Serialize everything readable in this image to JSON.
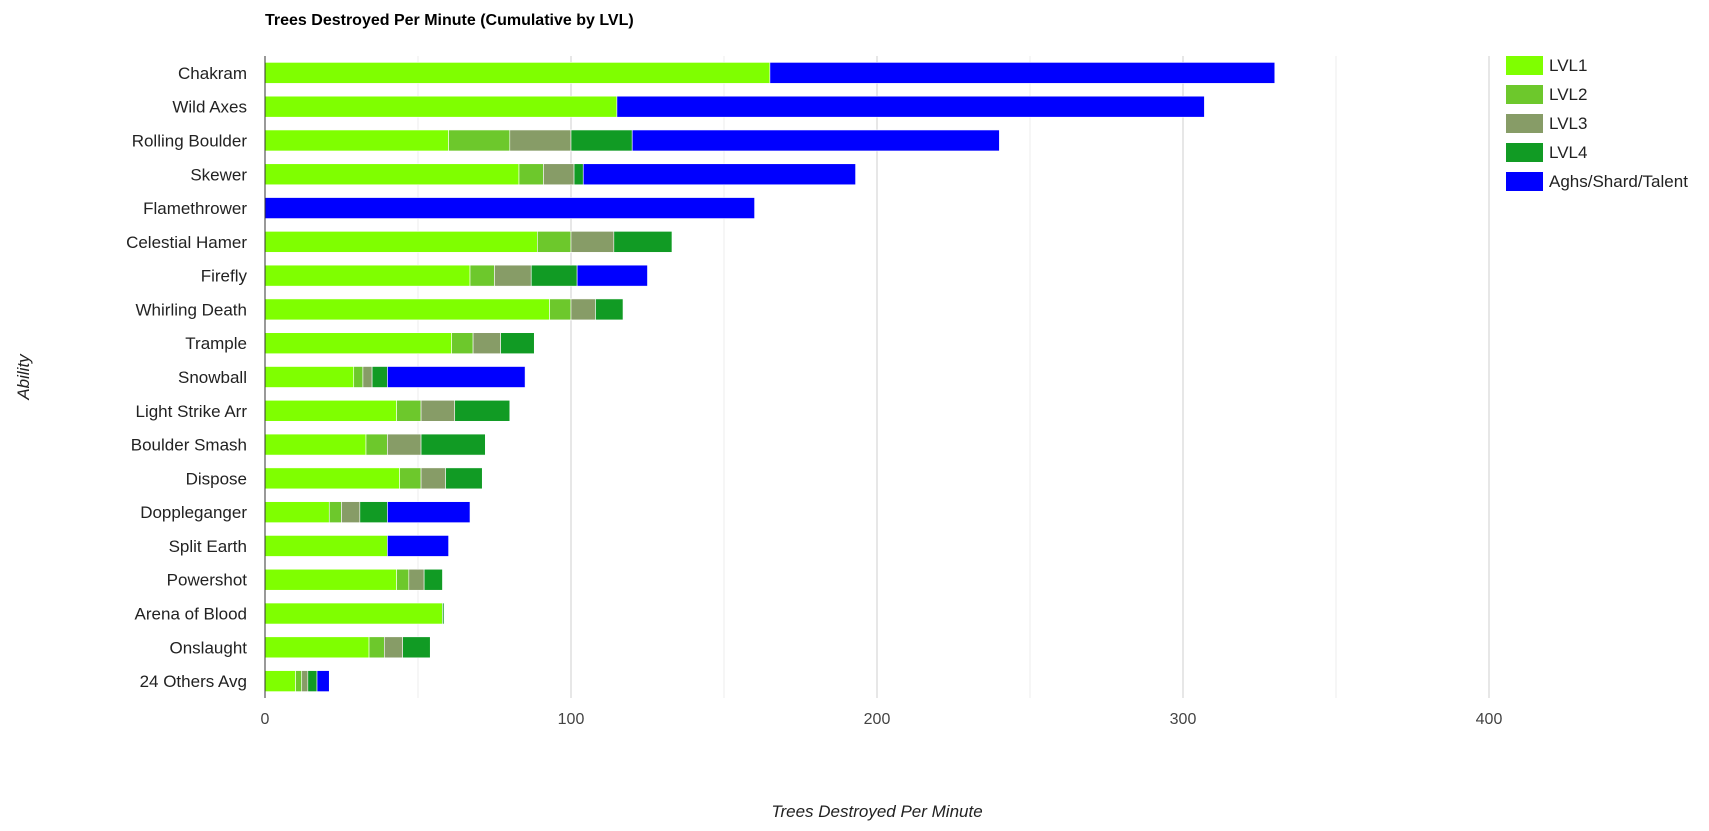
{
  "chart_data": {
    "type": "bar",
    "orientation": "horizontal",
    "stacked": true,
    "title": "Trees Destroyed Per Minute (Cumulative by LVL)",
    "xlabel": "Trees Destroyed Per Minute",
    "ylabel": "Ability",
    "xlim": [
      0,
      400
    ],
    "x_ticks": [
      0,
      100,
      200,
      300,
      400
    ],
    "grid": true,
    "legend_position": "top-right",
    "categories": [
      "Chakram",
      "Wild Axes",
      "Rolling Boulder",
      "Skewer",
      "Flamethrower",
      "Celestial Hamer",
      "Firefly",
      "Whirling Death",
      "Trample",
      "Snowball",
      "Light Strike Arr",
      "Boulder Smash",
      "Dispose",
      "Doppleganger",
      "Split Earth",
      "Powershot",
      "Arena of Blood",
      "Onslaught",
      "24 Others Avg"
    ],
    "series": [
      {
        "name": "LVL1",
        "color": "#7fff00",
        "values": [
          165,
          115,
          60,
          83,
          0,
          89,
          67,
          93,
          61,
          29,
          43,
          33,
          44,
          21,
          40,
          43,
          58,
          34,
          10
        ]
      },
      {
        "name": "LVL2",
        "color": "#6dc82c",
        "values": [
          0,
          0,
          20,
          8,
          0,
          11,
          8,
          7,
          7,
          3,
          8,
          7,
          7,
          4,
          0,
          4,
          0,
          5,
          2
        ]
      },
      {
        "name": "LVL3",
        "color": "#879c67",
        "values": [
          0,
          0,
          20,
          10,
          0,
          14,
          12,
          8,
          9,
          3,
          11,
          11,
          8,
          6,
          0,
          5,
          0,
          6,
          2
        ]
      },
      {
        "name": "LVL4",
        "color": "#119b24",
        "values": [
          0,
          0,
          20,
          3,
          0,
          19,
          15,
          9,
          11,
          5,
          18,
          21,
          12,
          9,
          0,
          6,
          0.5,
          9,
          3
        ]
      },
      {
        "name": "Aghs/Shard/Talent",
        "color": "#0000ff",
        "values": [
          165,
          192,
          120,
          89,
          160,
          0,
          23,
          0,
          0,
          45,
          0,
          0,
          0,
          27,
          20,
          0,
          0,
          0,
          4
        ]
      }
    ]
  }
}
